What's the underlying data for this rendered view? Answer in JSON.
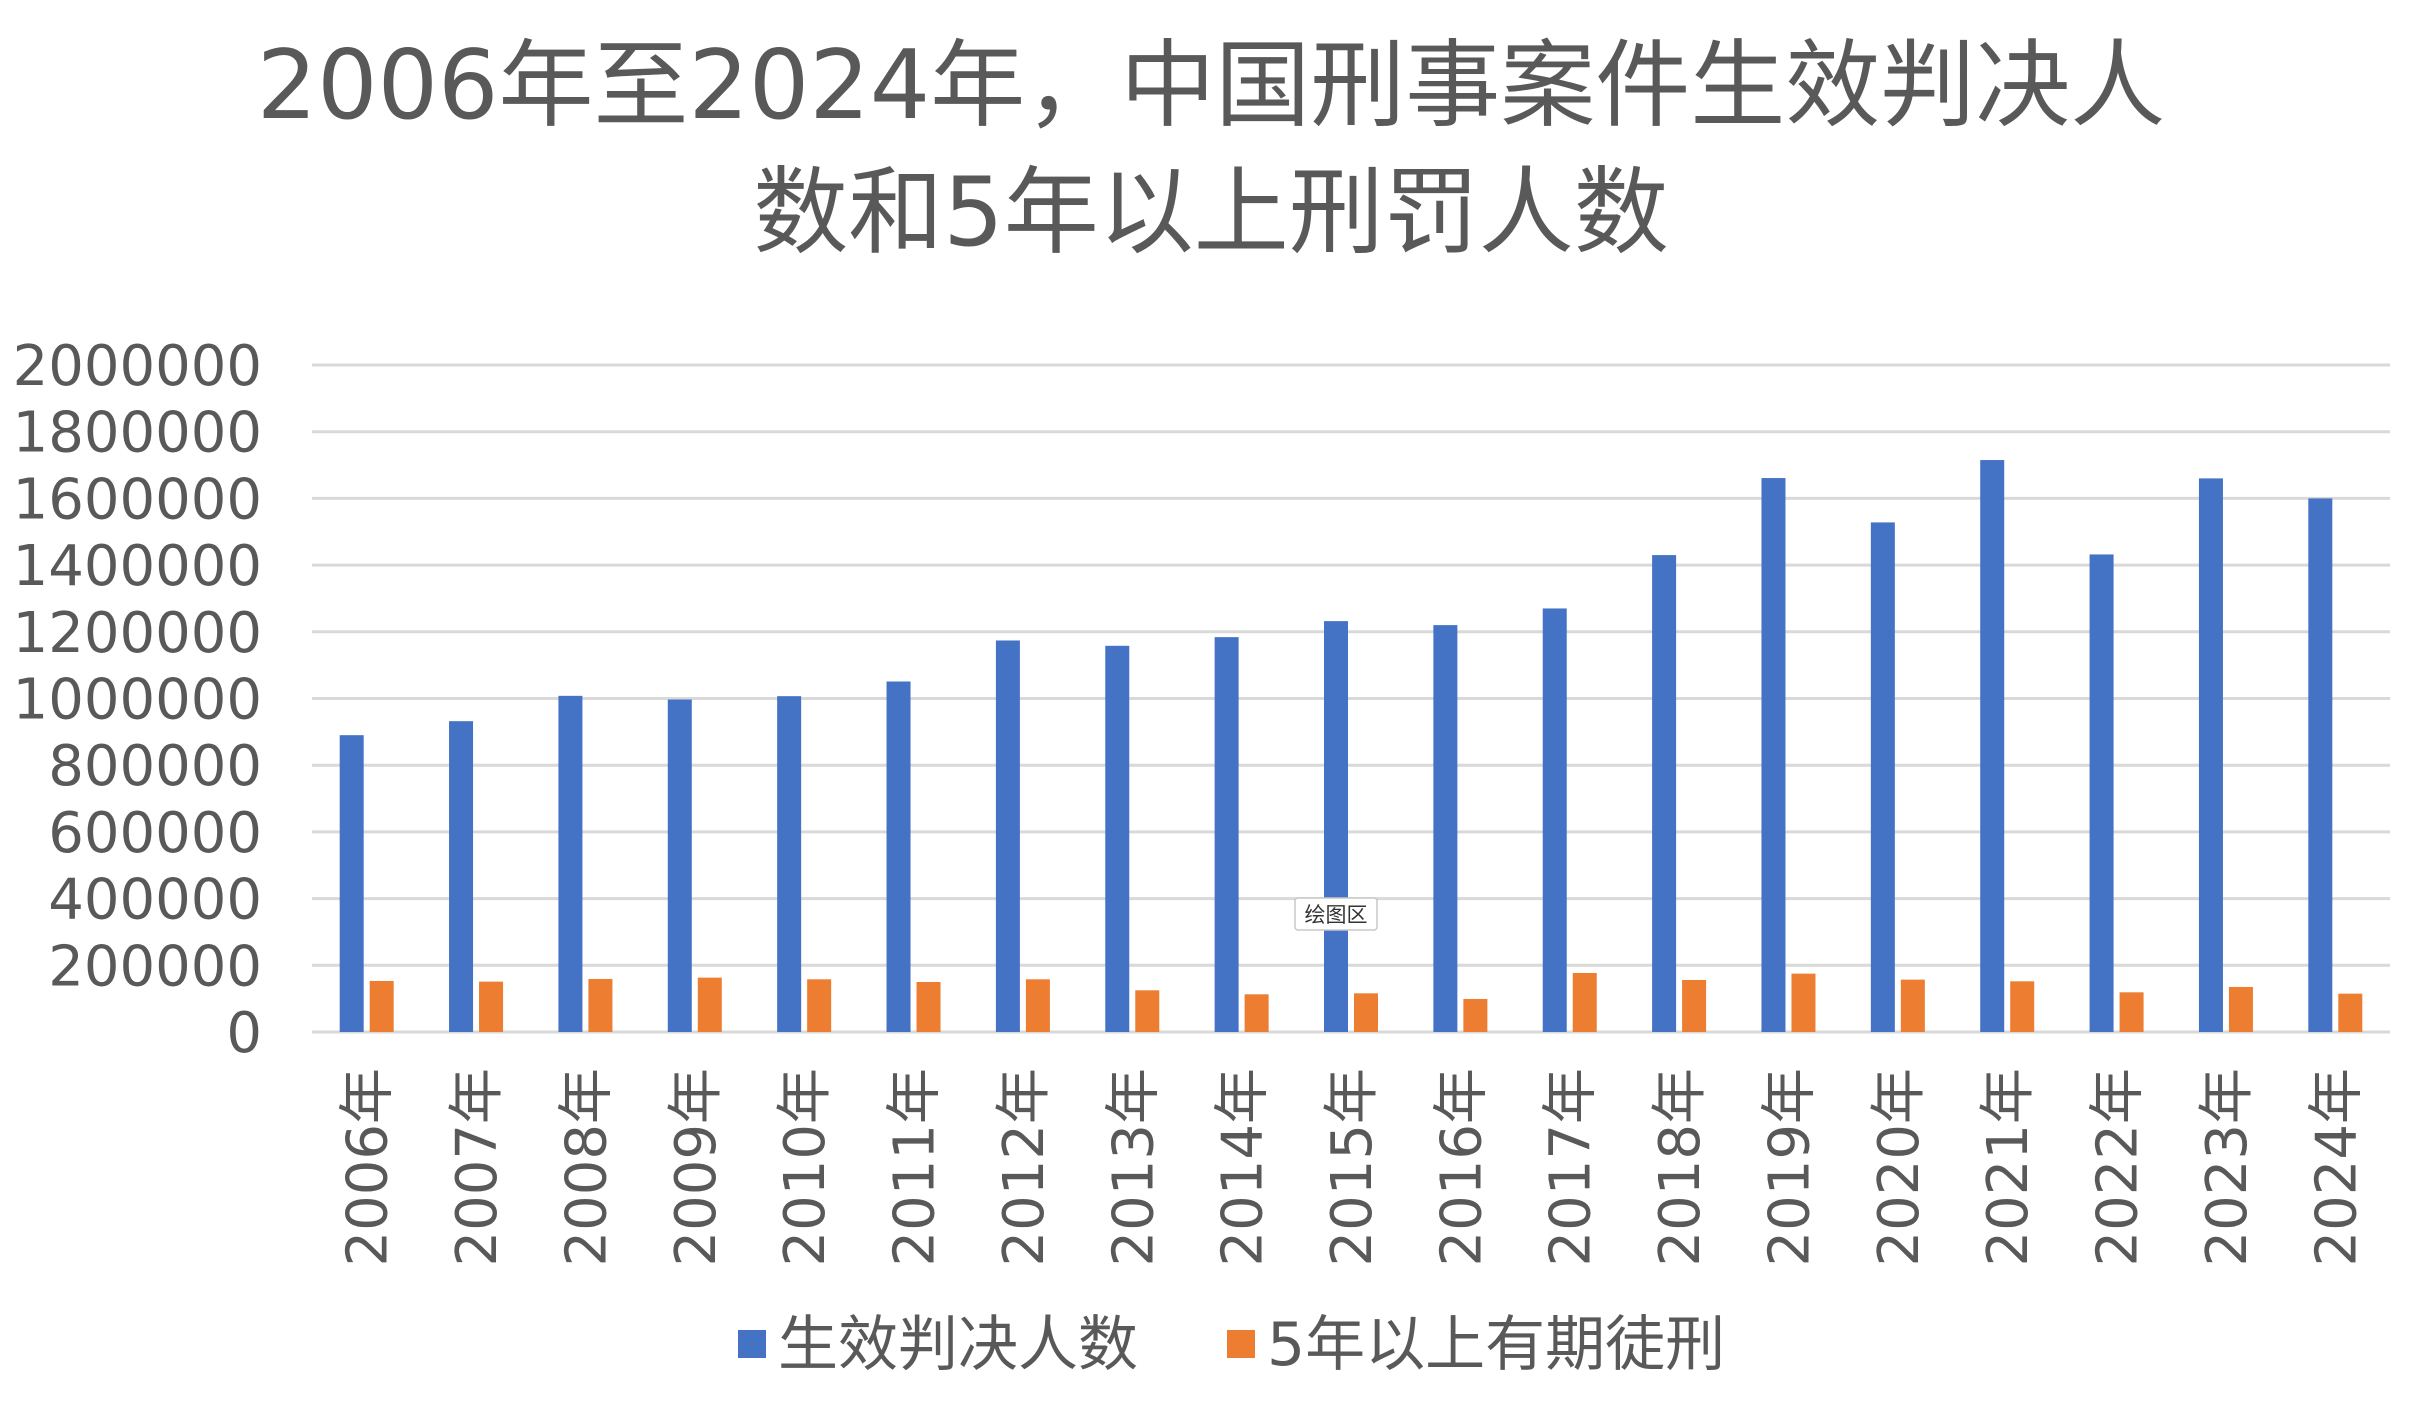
{
  "chart_data": {
    "type": "bar",
    "title_lines": [
      "2006年至2024年，中国刑事案件生效判决人",
      "数和5年以上刑罚人数"
    ],
    "categories": [
      "2006年",
      "2007年",
      "2008年",
      "2009年",
      "2010年",
      "2011年",
      "2012年",
      "2013年",
      "2014年",
      "2015年",
      "2016年",
      "2017年",
      "2018年",
      "2019年",
      "2020年",
      "2021年",
      "2022年",
      "2023年",
      "2024年"
    ],
    "series": [
      {
        "name": "生效判决人数",
        "color": "#4472C4",
        "values": [
          890000,
          932000,
          1008000,
          997000,
          1007000,
          1051000,
          1174000,
          1158000,
          1184000,
          1232000,
          1220000,
          1270000,
          1430000,
          1661000,
          1528000,
          1715000,
          1432000,
          1660000,
          1600000
        ]
      },
      {
        "name": "5年以上有期徒刑",
        "color": "#ED7D31",
        "values": [
          153000,
          151000,
          159000,
          163000,
          158000,
          150000,
          158000,
          125000,
          113000,
          116000,
          99000,
          177000,
          156000,
          175000,
          157000,
          152000,
          119000,
          135000,
          115000
        ]
      }
    ],
    "yticks": [
      "0",
      "200000",
      "400000",
      "600000",
      "800000",
      "1000000",
      "1200000",
      "1400000",
      "1600000",
      "1800000",
      "2000000"
    ],
    "ylim": [
      0,
      2000000
    ],
    "grid": true,
    "legend_position": "bottom",
    "tooltip": "绘图区"
  }
}
